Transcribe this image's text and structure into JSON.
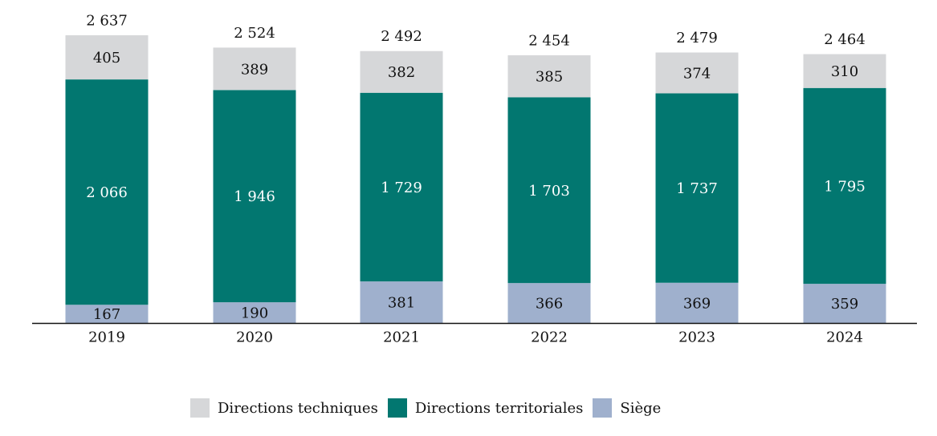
{
  "chart_data": {
    "type": "bar",
    "stacked": true,
    "title": "",
    "xlabel": "",
    "ylabel": "",
    "categories": [
      "2019",
      "2020",
      "2021",
      "2022",
      "2023",
      "2024"
    ],
    "series": [
      {
        "name": "Siège",
        "color": "#9fb0cd",
        "label_color": "#111111",
        "values": [
          167,
          190,
          381,
          366,
          369,
          359
        ]
      },
      {
        "name": "Directions territoriales",
        "color": "#027770",
        "label_color": "#ffffff",
        "values": [
          2066,
          1946,
          1729,
          1703,
          1737,
          1795
        ]
      },
      {
        "name": "Directions techniques",
        "color": "#d6d7d9",
        "label_color": "#111111",
        "values": [
          405,
          389,
          382,
          385,
          374,
          310
        ]
      }
    ],
    "totals": [
      2637,
      2524,
      2492,
      2454,
      2479,
      2464
    ],
    "value_labels": {
      "Siège": [
        "167",
        "190",
        "381",
        "366",
        "369",
        "359"
      ],
      "Directions territoriales": [
        "2 066",
        "1 946",
        "1 729",
        "1 703",
        "1 737",
        "1 795"
      ],
      "Directions techniques": [
        "405",
        "389",
        "382",
        "385",
        "374",
        "310"
      ],
      "totals": [
        "2 637",
        "2 524",
        "2 492",
        "2 454",
        "2 479",
        "2 464"
      ]
    },
    "ylim": [
      0,
      2637
    ],
    "grid": false,
    "legend_position": "bottom-center"
  },
  "legend": [
    {
      "label": "Directions techniques",
      "color": "#d6d7d9"
    },
    {
      "label": "Directions territoriales",
      "color": "#027770"
    },
    {
      "label": "Siège",
      "color": "#9fb0cd"
    }
  ]
}
